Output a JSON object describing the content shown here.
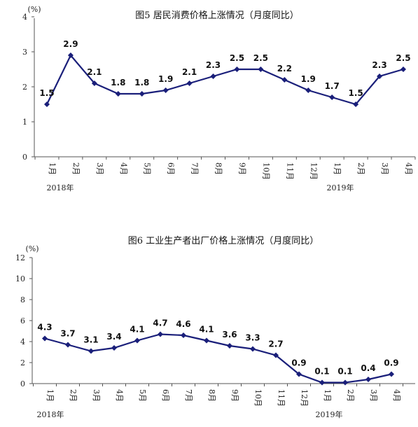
{
  "chart_data": [
    {
      "type": "line",
      "title": "图5   居民消费价格上涨情况（月度同比）",
      "unit": "(%)",
      "categories": [
        "1月",
        "2月",
        "3月",
        "4月",
        "5月",
        "6月",
        "7月",
        "8月",
        "9月",
        "10月",
        "11月",
        "12月",
        "1月",
        "2月",
        "3月",
        "4月"
      ],
      "values": [
        1.5,
        2.9,
        2.1,
        1.8,
        1.8,
        1.9,
        2.1,
        2.3,
        2.5,
        2.5,
        2.2,
        1.9,
        1.7,
        1.5,
        2.3,
        2.5
      ],
      "value_labels": [
        "1.5",
        "2.9",
        "2.1",
        "1.8",
        "1.8",
        "1.9",
        "2.1",
        "2.3",
        "2.5",
        "2.5",
        "2.2",
        "1.9",
        "1.7",
        "1.5",
        "2.3",
        "2.5"
      ],
      "ylim": [
        0,
        4
      ],
      "yticks": [
        "0",
        "1",
        "2",
        "3",
        "4"
      ],
      "year_labels": [
        "2018年",
        "2019年"
      ],
      "series_color": "#1a1f7a",
      "grid": false
    },
    {
      "type": "line",
      "title": "图6   工业生产者出厂价格上涨情况（月度同比）",
      "unit": "(%)",
      "categories": [
        "1月",
        "2月",
        "3月",
        "4月",
        "5月",
        "6月",
        "7月",
        "8月",
        "9月",
        "10月",
        "11月",
        "12月",
        "1月",
        "2月",
        "3月",
        "4月"
      ],
      "values": [
        4.3,
        3.7,
        3.1,
        3.4,
        4.1,
        4.7,
        4.6,
        4.1,
        3.6,
        3.3,
        2.7,
        0.9,
        0.1,
        0.1,
        0.4,
        0.9
      ],
      "value_labels": [
        "4.3",
        "3.7",
        "3.1",
        "3.4",
        "4.1",
        "4.7",
        "4.6",
        "4.1",
        "3.6",
        "3.3",
        "2.7",
        "0.9",
        "0.1",
        "0.1",
        "0.4",
        "0.9"
      ],
      "ylim": [
        0,
        12
      ],
      "yticks": [
        "0",
        "2",
        "4",
        "6",
        "8",
        "10",
        "12"
      ],
      "year_labels": [
        "2018年",
        "2019年"
      ],
      "series_color": "#1a1f7a",
      "grid": false
    }
  ]
}
